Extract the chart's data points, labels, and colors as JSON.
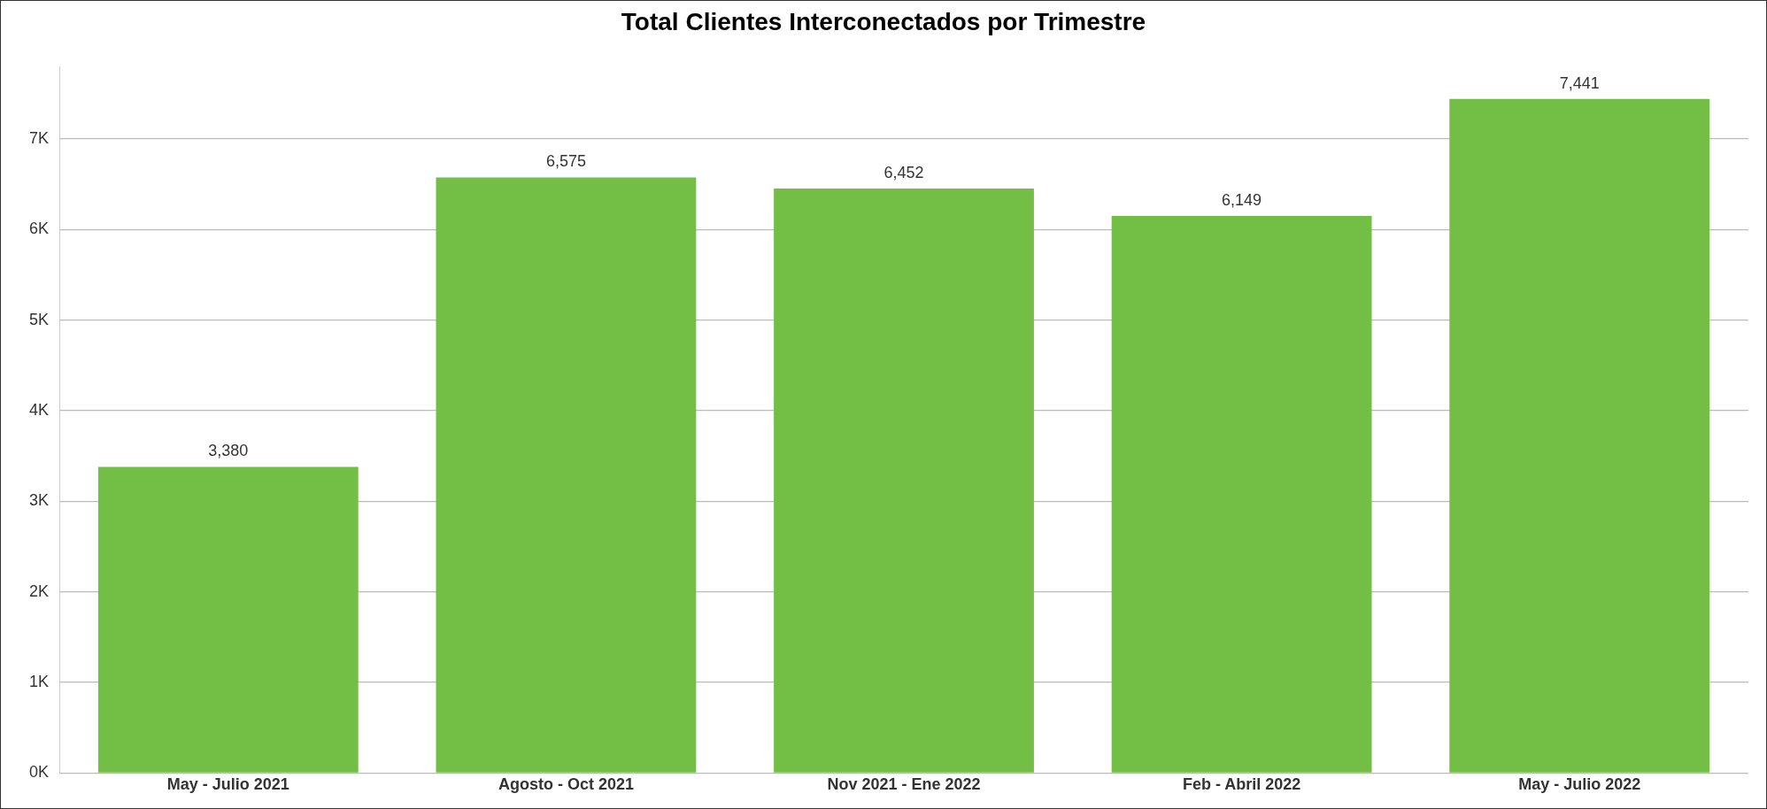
{
  "chart_data": {
    "type": "bar",
    "title": "Total Clientes Interconectados por Trimestre",
    "categories": [
      "May - Julio 2021",
      "Agosto - Oct 2021",
      "Nov 2021 - Ene 2022",
      "Feb - Abril 2022",
      "May - Julio 2022"
    ],
    "values": [
      3380,
      6575,
      6452,
      6149,
      7441
    ],
    "color": "#73bf45",
    "ylim": [
      0,
      7800
    ],
    "yticks": [
      {
        "value": 0,
        "label": "0K"
      },
      {
        "value": 1000,
        "label": "1K"
      },
      {
        "value": 2000,
        "label": "2K"
      },
      {
        "value": 3000,
        "label": "3K"
      },
      {
        "value": 4000,
        "label": "4K"
      },
      {
        "value": 5000,
        "label": "5K"
      },
      {
        "value": 6000,
        "label": "6K"
      },
      {
        "value": 7000,
        "label": "7K"
      }
    ],
    "value_labels": [
      "3,380",
      "6,575",
      "6,452",
      "6,149",
      "7,441"
    ],
    "grid": "y",
    "legend": false
  }
}
